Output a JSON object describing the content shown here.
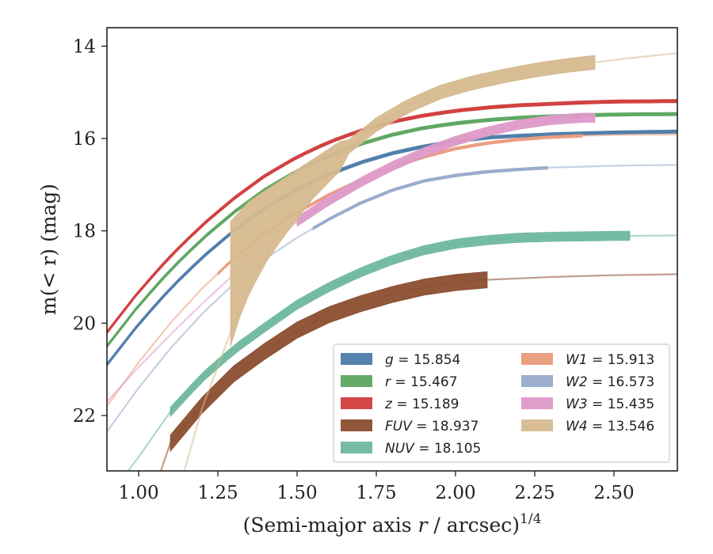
{
  "chart_data": {
    "type": "line",
    "title": "",
    "xlabel_main": "(Semi-major axis ",
    "xlabel_var": "r",
    "xlabel_tail": " / arcsec)",
    "xlabel_sup": "1/4",
    "ylabel_main": "m(< r) (mag)",
    "xlim": [
      0.9,
      2.7
    ],
    "ylim": [
      23.2,
      13.6
    ],
    "y_inverted": true,
    "x_ticks": [
      "1.00",
      "1.25",
      "1.50",
      "1.75",
      "2.00",
      "2.25",
      "2.50"
    ],
    "y_ticks": [
      "14",
      "16",
      "18",
      "20",
      "22"
    ],
    "grid": false,
    "legend_position": "lower-right",
    "legend_columns": 2,
    "series": [
      {
        "name": "g",
        "label_value": "15.854",
        "color": "#4c7bab",
        "band_width": 0.07,
        "solid_range": [
          0.9,
          2.7
        ],
        "points": [
          [
            0.9,
            20.9
          ],
          [
            1.0,
            20.02
          ],
          [
            1.1,
            19.25
          ],
          [
            1.2,
            18.58
          ],
          [
            1.3,
            18.0
          ],
          [
            1.4,
            17.5
          ],
          [
            1.5,
            17.1
          ],
          [
            1.6,
            16.78
          ],
          [
            1.7,
            16.52
          ],
          [
            1.8,
            16.32
          ],
          [
            1.9,
            16.17
          ],
          [
            2.0,
            16.06
          ],
          [
            2.1,
            15.98
          ],
          [
            2.2,
            15.94
          ],
          [
            2.3,
            15.91
          ],
          [
            2.4,
            15.89
          ],
          [
            2.5,
            15.87
          ],
          [
            2.6,
            15.86
          ],
          [
            2.7,
            15.85
          ]
        ]
      },
      {
        "name": "r",
        "label_value": "15.467",
        "color": "#5ba55e",
        "band_width": 0.07,
        "solid_range": [
          0.9,
          2.7
        ],
        "points": [
          [
            0.9,
            20.5
          ],
          [
            1.0,
            19.62
          ],
          [
            1.1,
            18.85
          ],
          [
            1.2,
            18.18
          ],
          [
            1.3,
            17.6
          ],
          [
            1.4,
            17.1
          ],
          [
            1.5,
            16.7
          ],
          [
            1.6,
            16.38
          ],
          [
            1.7,
            16.12
          ],
          [
            1.8,
            15.92
          ],
          [
            1.9,
            15.77
          ],
          [
            2.0,
            15.67
          ],
          [
            2.1,
            15.6
          ],
          [
            2.2,
            15.55
          ],
          [
            2.3,
            15.52
          ],
          [
            2.4,
            15.5
          ],
          [
            2.5,
            15.48
          ],
          [
            2.6,
            15.475
          ],
          [
            2.7,
            15.47
          ]
        ]
      },
      {
        "name": "z",
        "label_value": "15.189",
        "color": "#d13c3c",
        "band_width": 0.07,
        "solid_range": [
          0.9,
          2.7
        ],
        "points": [
          [
            0.9,
            20.2
          ],
          [
            1.0,
            19.32
          ],
          [
            1.1,
            18.55
          ],
          [
            1.2,
            17.88
          ],
          [
            1.3,
            17.3
          ],
          [
            1.4,
            16.8
          ],
          [
            1.5,
            16.4
          ],
          [
            1.6,
            16.08
          ],
          [
            1.7,
            15.83
          ],
          [
            1.8,
            15.64
          ],
          [
            1.9,
            15.5
          ],
          [
            2.0,
            15.4
          ],
          [
            2.1,
            15.33
          ],
          [
            2.2,
            15.28
          ],
          [
            2.3,
            15.25
          ],
          [
            2.4,
            15.22
          ],
          [
            2.5,
            15.2
          ],
          [
            2.6,
            15.195
          ],
          [
            2.7,
            15.19
          ]
        ]
      },
      {
        "name": "FUV",
        "label_value": "18.937",
        "color": "#8b4e2f",
        "band_width": 0.35,
        "solid_range": [
          1.1,
          2.1
        ],
        "points": [
          [
            1.0,
            24.6
          ],
          [
            1.1,
            22.6
          ],
          [
            1.2,
            21.78
          ],
          [
            1.3,
            21.1
          ],
          [
            1.4,
            20.6
          ],
          [
            1.5,
            20.15
          ],
          [
            1.6,
            19.82
          ],
          [
            1.7,
            19.58
          ],
          [
            1.8,
            19.38
          ],
          [
            1.9,
            19.22
          ],
          [
            2.0,
            19.12
          ],
          [
            2.1,
            19.06
          ],
          [
            2.2,
            19.03
          ],
          [
            2.3,
            19.0
          ],
          [
            2.4,
            18.98
          ],
          [
            2.5,
            18.96
          ],
          [
            2.6,
            18.95
          ],
          [
            2.7,
            18.94
          ]
        ]
      },
      {
        "name": "NUV",
        "label_value": "18.105",
        "color": "#6fb89f",
        "band_width": 0.2,
        "solid_range": [
          1.1,
          2.55
        ],
        "points": [
          [
            0.9,
            23.8
          ],
          [
            1.0,
            22.9
          ],
          [
            1.1,
            21.92
          ],
          [
            1.2,
            21.18
          ],
          [
            1.3,
            20.58
          ],
          [
            1.4,
            20.08
          ],
          [
            1.5,
            19.6
          ],
          [
            1.6,
            19.22
          ],
          [
            1.7,
            18.9
          ],
          [
            1.8,
            18.63
          ],
          [
            1.9,
            18.42
          ],
          [
            2.0,
            18.28
          ],
          [
            2.1,
            18.2
          ],
          [
            2.2,
            18.15
          ],
          [
            2.3,
            18.13
          ],
          [
            2.4,
            18.12
          ],
          [
            2.5,
            18.11
          ],
          [
            2.6,
            18.105
          ],
          [
            2.7,
            18.1
          ]
        ]
      },
      {
        "name": "W1",
        "label_value": "15.913",
        "color": "#eb9b7c",
        "band_width": 0.06,
        "solid_range": [
          1.25,
          2.4
        ],
        "points": [
          [
            0.9,
            21.8
          ],
          [
            1.0,
            20.85
          ],
          [
            1.1,
            20.0
          ],
          [
            1.2,
            19.25
          ],
          [
            1.3,
            18.6
          ],
          [
            1.4,
            18.05
          ],
          [
            1.5,
            17.6
          ],
          [
            1.6,
            17.22
          ],
          [
            1.7,
            16.9
          ],
          [
            1.8,
            16.63
          ],
          [
            1.9,
            16.4
          ],
          [
            2.0,
            16.22
          ],
          [
            2.1,
            16.1
          ],
          [
            2.2,
            16.02
          ],
          [
            2.3,
            15.97
          ],
          [
            2.4,
            15.94
          ],
          [
            2.5,
            15.925
          ],
          [
            2.6,
            15.918
          ],
          [
            2.7,
            15.913
          ]
        ]
      },
      {
        "name": "W2",
        "label_value": "16.573",
        "color": "#98aacb",
        "band_width": 0.06,
        "solid_range": [
          1.55,
          2.29
        ],
        "points": [
          [
            0.9,
            22.35
          ],
          [
            1.0,
            21.4
          ],
          [
            1.1,
            20.55
          ],
          [
            1.2,
            19.8
          ],
          [
            1.3,
            19.15
          ],
          [
            1.4,
            18.6
          ],
          [
            1.5,
            18.15
          ],
          [
            1.6,
            17.75
          ],
          [
            1.7,
            17.4
          ],
          [
            1.8,
            17.12
          ],
          [
            1.9,
            16.92
          ],
          [
            2.0,
            16.8
          ],
          [
            2.1,
            16.72
          ],
          [
            2.2,
            16.67
          ],
          [
            2.3,
            16.63
          ],
          [
            2.4,
            16.61
          ],
          [
            2.5,
            16.59
          ],
          [
            2.6,
            16.58
          ],
          [
            2.7,
            16.573
          ]
        ]
      },
      {
        "name": "W3",
        "label_value": "15.435",
        "color": "#de9ac8",
        "band_width": 0.2,
        "solid_range": [
          1.5,
          2.44
        ],
        "points": [
          [
            0.9,
            21.7
          ],
          [
            1.0,
            20.95
          ],
          [
            1.1,
            20.25
          ],
          [
            1.2,
            19.58
          ],
          [
            1.3,
            18.95
          ],
          [
            1.4,
            18.35
          ],
          [
            1.5,
            17.8
          ],
          [
            1.6,
            17.35
          ],
          [
            1.7,
            16.95
          ],
          [
            1.8,
            16.6
          ],
          [
            1.9,
            16.3
          ],
          [
            2.0,
            16.05
          ],
          [
            2.1,
            15.85
          ],
          [
            2.2,
            15.7
          ],
          [
            2.3,
            15.6
          ],
          [
            2.4,
            15.55
          ]
        ]
      },
      {
        "name": "W4",
        "label_value": "13.546",
        "color": "#d6b98f",
        "band_width": 0.3,
        "solid_range": [
          1.29,
          2.44
        ],
        "band_extra": [
          [
            1.29,
            17.8,
            20.5
          ],
          [
            1.35,
            17.35,
            19.2
          ],
          [
            1.45,
            16.9,
            18.2
          ],
          [
            1.55,
            16.45,
            17.3
          ],
          [
            1.65,
            16.0,
            16.6
          ]
        ],
        "points": [
          [
            1.14,
            23.3
          ],
          [
            1.2,
            21.85
          ],
          [
            1.29,
            20.2
          ],
          [
            1.35,
            19.2
          ],
          [
            1.45,
            17.9
          ],
          [
            1.55,
            17.0
          ],
          [
            1.65,
            16.25
          ],
          [
            1.75,
            15.7
          ],
          [
            1.85,
            15.3
          ],
          [
            1.95,
            15.0
          ],
          [
            2.05,
            14.8
          ],
          [
            2.15,
            14.65
          ],
          [
            2.25,
            14.52
          ],
          [
            2.35,
            14.42
          ],
          [
            2.44,
            14.35
          ],
          [
            2.55,
            14.26
          ],
          [
            2.7,
            14.15
          ]
        ]
      }
    ]
  }
}
